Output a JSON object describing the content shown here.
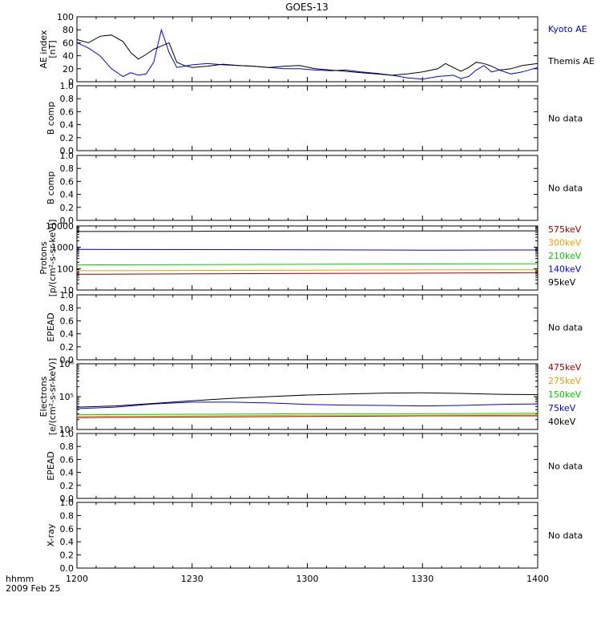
{
  "title": "GOES-13",
  "footer": {
    "unit": "hhmm",
    "date": "2009 Feb 25"
  },
  "colors": {
    "black": "#000000",
    "blue": "#0000ff",
    "green": "#00d000",
    "orange": "#f0a000",
    "darkred": "#a00000"
  },
  "chart_data": [
    {
      "type": "line",
      "id": "ae",
      "ylabel": [
        "AE index",
        "[nT]"
      ],
      "ylim": [
        0,
        100
      ],
      "yticks": [
        0,
        20,
        40,
        60,
        80,
        100
      ],
      "xlim": [
        0,
        120
      ],
      "xtick_labels": [
        "1200",
        "1230",
        "1300",
        "1330",
        "1400"
      ],
      "xtick_positions": [
        0,
        30,
        60,
        90,
        120
      ],
      "series": [
        {
          "name": "Kyoto AE",
          "color": "#0000ff",
          "x": [
            0,
            3,
            6,
            9,
            12,
            14,
            16,
            18,
            20,
            22,
            24,
            26,
            28,
            30,
            34,
            38,
            42,
            46,
            50,
            54,
            58,
            62,
            66,
            70,
            74,
            78,
            82,
            86,
            90,
            94,
            98,
            100,
            102,
            104,
            106,
            108,
            110,
            113,
            116,
            120
          ],
          "y": [
            60,
            52,
            40,
            20,
            8,
            14,
            10,
            12,
            30,
            80,
            45,
            22,
            24,
            26,
            28,
            26,
            25,
            24,
            22,
            20,
            20,
            18,
            17,
            18,
            15,
            13,
            10,
            6,
            4,
            8,
            10,
            5,
            8,
            18,
            25,
            15,
            18,
            12,
            15,
            22
          ]
        },
        {
          "name": "Themis AE",
          "color": "#000000",
          "x": [
            0,
            3,
            6,
            9,
            12,
            14,
            16,
            18,
            20,
            22,
            24,
            26,
            28,
            30,
            34,
            38,
            42,
            46,
            50,
            54,
            58,
            62,
            66,
            70,
            74,
            78,
            82,
            86,
            90,
            94,
            96,
            98,
            100,
            102,
            104,
            106,
            108,
            110,
            113,
            116,
            120
          ],
          "y": [
            65,
            60,
            70,
            72,
            62,
            45,
            35,
            42,
            50,
            55,
            60,
            30,
            25,
            22,
            24,
            27,
            25,
            24,
            22,
            24,
            25,
            20,
            18,
            16,
            14,
            12,
            10,
            12,
            15,
            20,
            28,
            22,
            16,
            22,
            30,
            28,
            24,
            18,
            20,
            25,
            28
          ]
        }
      ]
    },
    {
      "type": "line",
      "id": "bcomp1",
      "ylabel": [
        "B comp"
      ],
      "ylim": [
        0,
        1
      ],
      "yticks": [
        0.0,
        0.2,
        0.4,
        0.6,
        0.8,
        1.0
      ],
      "ytick_labels": [
        "0.0",
        "0.2",
        "0.4",
        "0.6",
        "0.8",
        "1.0"
      ],
      "xlim": [
        0,
        120
      ],
      "series": [],
      "note": "No data"
    },
    {
      "type": "line",
      "id": "bcomp2",
      "ylabel": [
        "B comp"
      ],
      "ylim": [
        0,
        1
      ],
      "yticks": [
        0.0,
        0.2,
        0.4,
        0.6,
        0.8,
        1.0
      ],
      "ytick_labels": [
        "0.0",
        "0.2",
        "0.4",
        "0.6",
        "0.8",
        "1.0"
      ],
      "xlim": [
        0,
        120
      ],
      "series": [],
      "note": "No data"
    },
    {
      "type": "line",
      "id": "protons",
      "ylabel": [
        "Protons",
        "[p/(cm²-s-sr-keV)]"
      ],
      "yscale": "log",
      "ylim": [
        10,
        10000
      ],
      "yticks": [
        10,
        100,
        1000,
        10000
      ],
      "ytick_labels": [
        "10",
        "100",
        "1000",
        "10000"
      ],
      "xlim": [
        0,
        120
      ],
      "series": [
        {
          "name": "575keV",
          "color": "#a00000",
          "x": [
            0,
            30,
            60,
            90,
            120
          ],
          "y": [
            55,
            57,
            60,
            62,
            65
          ]
        },
        {
          "name": "300keV",
          "color": "#f0a000",
          "x": [
            0,
            30,
            60,
            90,
            120
          ],
          "y": [
            80,
            82,
            85,
            88,
            90
          ]
        },
        {
          "name": "210keV",
          "color": "#00d000",
          "x": [
            0,
            30,
            60,
            90,
            120
          ],
          "y": [
            150,
            155,
            160,
            165,
            170
          ]
        },
        {
          "name": "140keV",
          "color": "#0000ff",
          "x": [
            0,
            30,
            60,
            90,
            120
          ],
          "y": [
            800,
            780,
            760,
            740,
            750
          ]
        },
        {
          "name": "95keV",
          "color": "#000000",
          "x": [
            0,
            30,
            60,
            90,
            120
          ],
          "y": [
            5500,
            5600,
            5800,
            5800,
            5900
          ]
        }
      ]
    },
    {
      "type": "line",
      "id": "epead1",
      "ylabel": [
        "EPEAD"
      ],
      "ylim": [
        0,
        1
      ],
      "yticks": [
        0.0,
        0.2,
        0.4,
        0.6,
        0.8,
        1.0
      ],
      "ytick_labels": [
        "0.0",
        "0.2",
        "0.4",
        "0.6",
        "0.8",
        "1.0"
      ],
      "xlim": [
        0,
        120
      ],
      "series": [],
      "note": "No data"
    },
    {
      "type": "line",
      "id": "electrons",
      "ylabel": [
        "Electrons",
        "[e/(cm²-s-sr-keV)]"
      ],
      "yscale": "log",
      "ylim": [
        10000,
        1000000
      ],
      "yticks": [
        10000,
        100000,
        1000000
      ],
      "ytick_labels": [
        "10⁴",
        "10⁵",
        "10⁶"
      ],
      "xlim": [
        0,
        120
      ],
      "series": [
        {
          "name": "475keV",
          "color": "#a00000",
          "x": [
            0,
            30,
            60,
            90,
            120
          ],
          "y": [
            23000,
            24000,
            25000,
            26000,
            26000
          ]
        },
        {
          "name": "275keV",
          "color": "#f0a000",
          "x": [
            0,
            30,
            60,
            90,
            120
          ],
          "y": [
            25000,
            26000,
            27000,
            27000,
            28000
          ]
        },
        {
          "name": "150keV",
          "color": "#00d000",
          "x": [
            0,
            30,
            60,
            90,
            120
          ],
          "y": [
            28000,
            29000,
            30000,
            30000,
            31000
          ]
        },
        {
          "name": "75keV",
          "color": "#0000ff",
          "x": [
            0,
            10,
            20,
            30,
            40,
            50,
            60,
            70,
            80,
            90,
            100,
            110,
            120
          ],
          "y": [
            43000,
            48000,
            60000,
            68000,
            68000,
            64000,
            58000,
            55000,
            54000,
            52000,
            54000,
            58000,
            60000
          ]
        },
        {
          "name": "40keV",
          "color": "#000000",
          "x": [
            0,
            10,
            20,
            30,
            40,
            50,
            60,
            70,
            80,
            90,
            100,
            110,
            120
          ],
          "y": [
            48000,
            52000,
            62000,
            75000,
            88000,
            100000,
            112000,
            120000,
            128000,
            130000,
            125000,
            118000,
            115000
          ]
        }
      ]
    },
    {
      "type": "line",
      "id": "epead2",
      "ylabel": [
        "EPEAD"
      ],
      "ylim": [
        0,
        1
      ],
      "yticks": [
        0.0,
        0.2,
        0.4,
        0.6,
        0.8,
        1.0
      ],
      "ytick_labels": [
        "0.0",
        "0.2",
        "0.4",
        "0.6",
        "0.8",
        "1.0"
      ],
      "xlim": [
        0,
        120
      ],
      "series": [],
      "note": "No data"
    },
    {
      "type": "line",
      "id": "xray",
      "ylabel": [
        "X-ray"
      ],
      "ylim": [
        0,
        1
      ],
      "yticks": [
        0.0,
        0.2,
        0.4,
        0.6,
        0.8,
        1.0
      ],
      "ytick_labels": [
        "0.0",
        "0.2",
        "0.4",
        "0.6",
        "0.8",
        "1.0"
      ],
      "xlim": [
        0,
        120
      ],
      "series": [],
      "note": "No data"
    }
  ]
}
